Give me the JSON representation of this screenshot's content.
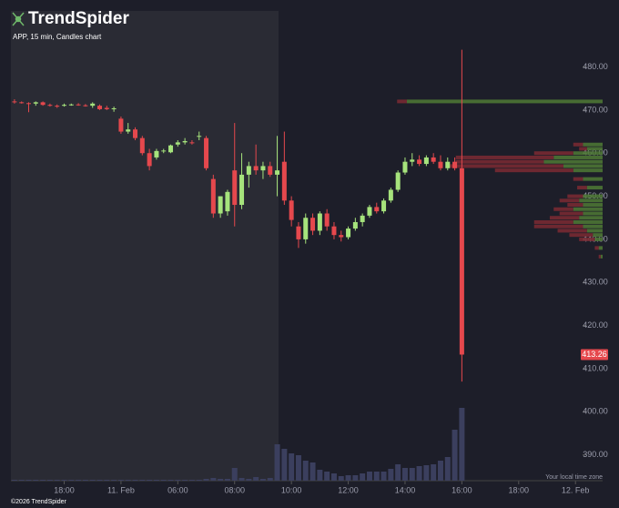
{
  "chart_data": {
    "type": "candlestick",
    "brand": "TrendSpider",
    "subtitle": "APP, 15 min, Candles chart",
    "note": "Your local time zone",
    "footer": "©2026 TrendSpider",
    "up_color": "#a6e37c",
    "down_color": "#e5484d",
    "volume_color": "#3b3f5e",
    "xlim": [
      0.5,
      81
    ],
    "xticks": [
      {
        "value": 8,
        "label": "18:00"
      },
      {
        "value": 16,
        "label": "11. Feb"
      },
      {
        "value": 24,
        "label": "06:00"
      },
      {
        "value": 32,
        "label": "08:00"
      },
      {
        "value": 40,
        "label": "10:00"
      },
      {
        "value": 48,
        "label": "12:00"
      },
      {
        "value": 56,
        "label": "14:00"
      },
      {
        "value": 64,
        "label": "16:00"
      },
      {
        "value": 72,
        "label": "18:00"
      },
      {
        "value": 80,
        "label": "12. Feb"
      }
    ],
    "ylim": [
      384,
      493
    ],
    "yticks": [
      {
        "value": 390,
        "label": "390.00"
      },
      {
        "value": 400,
        "label": "400.00"
      },
      {
        "value": 410,
        "label": "410.00"
      },
      {
        "value": 420,
        "label": "420.00"
      },
      {
        "value": 430,
        "label": "430.00"
      },
      {
        "value": 440,
        "label": "440.00"
      },
      {
        "value": 450,
        "label": "450.00"
      },
      {
        "value": 460,
        "label": "460.00"
      },
      {
        "value": 470,
        "label": "470.00"
      },
      {
        "value": 480,
        "label": "480.00"
      }
    ],
    "candles": {
      "x": [
        1,
        2,
        3,
        4,
        5,
        6,
        7,
        8,
        9,
        10,
        11,
        12,
        13,
        14,
        15,
        16,
        17,
        18,
        19,
        20,
        21,
        22,
        23,
        24,
        25,
        26,
        27,
        28,
        29,
        30,
        31,
        32,
        33,
        34,
        35,
        36,
        37,
        38,
        39,
        40,
        41,
        42,
        43,
        44,
        45,
        46,
        47,
        48,
        49,
        50,
        51,
        52,
        53,
        54,
        55,
        56,
        57,
        58,
        59,
        60,
        61,
        62,
        63,
        64
      ],
      "open": [
        472,
        471.8,
        471.6,
        471.5,
        471.8,
        471.2,
        471,
        471,
        471.2,
        471.3,
        471.1,
        471,
        471,
        470.5,
        470.2,
        468,
        465,
        465.5,
        463.5,
        460,
        459,
        460.5,
        460.2,
        462,
        462.5,
        462.5,
        464,
        463.5,
        454,
        446,
        446.5,
        456,
        448,
        455,
        457,
        456,
        457,
        455,
        458,
        449,
        443,
        440,
        445,
        442,
        446,
        443,
        441,
        440.5,
        442.5,
        444,
        445.5,
        447.5,
        446.5,
        449,
        451.5,
        455.5,
        458,
        458.5,
        457.5,
        459,
        458,
        456.5,
        458,
        456.5
      ],
      "high": [
        472.5,
        472,
        471.8,
        472,
        472,
        471.5,
        471.3,
        471.5,
        471.5,
        471.6,
        471.4,
        471.8,
        471.3,
        471,
        470.8,
        468.5,
        467,
        466,
        464,
        461,
        461,
        461,
        462,
        463,
        463.5,
        463,
        465,
        464,
        455,
        450,
        451.5,
        467,
        460,
        458,
        462,
        458,
        458,
        464,
        465,
        450,
        444,
        446,
        446,
        446.5,
        447,
        444,
        442,
        443,
        445,
        446,
        448,
        448.5,
        449.5,
        452,
        456,
        459,
        460,
        459.5,
        459.5,
        460,
        459.5,
        459,
        459,
        484
      ],
      "low": [
        471.5,
        471.5,
        469.5,
        471,
        471,
        470.8,
        470.5,
        470.8,
        471,
        471,
        470.8,
        470.5,
        470,
        470,
        469.6,
        464.5,
        464.5,
        463,
        459.5,
        456,
        458.5,
        460,
        460,
        461.5,
        462,
        462,
        463,
        456,
        445,
        445,
        445.5,
        443,
        447,
        452,
        455,
        454,
        454.5,
        450,
        448,
        443,
        438,
        439,
        441,
        441,
        442,
        440,
        439.5,
        440,
        442,
        443,
        445,
        446,
        446,
        448.5,
        451,
        455,
        457,
        457,
        457,
        457.5,
        456,
        456,
        456,
        407
      ],
      "close": [
        471.8,
        471.6,
        471.5,
        471.8,
        471.2,
        471,
        470.8,
        471.2,
        471.3,
        471.1,
        471,
        471.5,
        470.2,
        470.2,
        470.4,
        465,
        465.5,
        463.5,
        460,
        457,
        460.5,
        460.6,
        461.8,
        462.5,
        462.8,
        462.3,
        464,
        456.5,
        446,
        450,
        451,
        448,
        455,
        457,
        456,
        457,
        455,
        456,
        449,
        444.5,
        440,
        445,
        442,
        446,
        443,
        441,
        440.5,
        442.5,
        444,
        445.5,
        447.5,
        446.5,
        449,
        451.5,
        455.5,
        458,
        458.5,
        457.5,
        459,
        458,
        456.5,
        458,
        456.5,
        413.26
      ],
      "volume": [
        1,
        1,
        1,
        1,
        1,
        1,
        1,
        1,
        1,
        1,
        1,
        1,
        1,
        1,
        1,
        1,
        1,
        1,
        1,
        1,
        1,
        1,
        1,
        1,
        1,
        1,
        1,
        2,
        3,
        2,
        2,
        14,
        3,
        2,
        4,
        2,
        3,
        40,
        35,
        30,
        28,
        22,
        20,
        12,
        10,
        8,
        5,
        6,
        6,
        8,
        10,
        10,
        10,
        13,
        18,
        14,
        14,
        16,
        17,
        18,
        22,
        26,
        56,
        80
      ]
    },
    "volume_ylim": [
      0,
      100
    ],
    "volume_profile": {
      "up_color": "#4f7a35",
      "down_color": "#7c2a33",
      "xlim": [
        0,
        100
      ],
      "levels": [
        472,
        462,
        461,
        460,
        459,
        458,
        457,
        456,
        454,
        452,
        450,
        449,
        448,
        447,
        446,
        445,
        444,
        443,
        442,
        441,
        440,
        438,
        436
      ],
      "up": [
        100,
        10,
        8,
        15,
        25,
        30,
        20,
        15,
        10,
        8,
        10,
        12,
        10,
        15,
        10,
        12,
        15,
        10,
        8,
        5,
        4,
        2,
        1
      ],
      "down": [
        5,
        5,
        4,
        20,
        50,
        45,
        60,
        40,
        5,
        5,
        8,
        10,
        8,
        10,
        12,
        15,
        20,
        25,
        15,
        12,
        8,
        2,
        1
      ]
    }
  }
}
